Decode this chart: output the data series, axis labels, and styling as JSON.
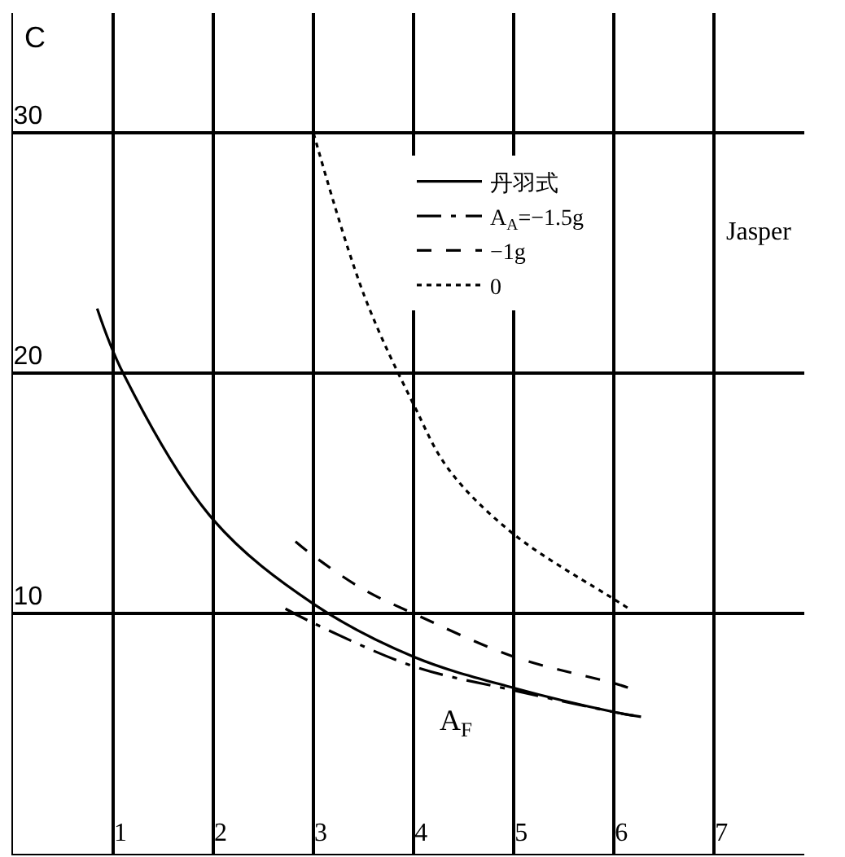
{
  "chart_data": {
    "type": "line",
    "xlabel": "A$_{F}$",
    "ylabel": "C",
    "xlim": [
      0,
      7.9
    ],
    "ylim": [
      0,
      35
    ],
    "xticks": [
      1,
      2,
      3,
      4,
      5,
      6,
      7
    ],
    "yticks": [
      10,
      20,
      30
    ],
    "grid": true,
    "legend": "top right",
    "legend_title": "Jasper",
    "series": [
      {
        "name": "丹羽式",
        "color": "#000000",
        "line_style": "solid",
        "x": [
          0.84,
          1.1,
          2,
          3,
          4,
          5,
          6,
          6.27
        ],
        "values": [
          22.7,
          20,
          13.9,
          10.4,
          8.2,
          6.9,
          5.9,
          5.7
        ]
      },
      {
        "name": "A$_{A}$=−1.5g",
        "color": "#000000",
        "line_style": "dashdot",
        "x": [
          2.72,
          3,
          4,
          5,
          6,
          6.27
        ],
        "values": [
          10.2,
          9.6,
          7.8,
          6.8,
          5.9,
          5.7
        ]
      },
      {
        "name": "−1g",
        "color": "#000000",
        "line_style": "dashed",
        "x": [
          2.82,
          3,
          3.5,
          4,
          5,
          6,
          6.15
        ],
        "values": [
          13.0,
          12.4,
          11.0,
          10.0,
          8.2,
          7.1,
          6.9
        ]
      },
      {
        "name": "0",
        "color": "#000000",
        "line_style": "dotted",
        "x": [
          3,
          3.51,
          4,
          4.35,
          5,
          6,
          6.15
        ],
        "values": [
          30,
          23.2,
          18.7,
          16.0,
          13.3,
          10.6,
          10.2
        ]
      }
    ]
  }
}
